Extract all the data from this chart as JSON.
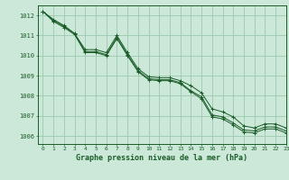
{
  "title": "Graphe pression niveau de la mer (hPa)",
  "background_color": "#cce8d8",
  "grid_color": "#9dc8b0",
  "line_color": "#1a5c28",
  "xlim": [
    -0.5,
    23
  ],
  "ylim": [
    1005.6,
    1012.5
  ],
  "yticks": [
    1006,
    1007,
    1008,
    1009,
    1010,
    1011,
    1012
  ],
  "xticks": [
    0,
    1,
    2,
    3,
    4,
    5,
    6,
    7,
    8,
    9,
    10,
    11,
    12,
    13,
    14,
    15,
    16,
    17,
    18,
    19,
    20,
    21,
    22,
    23
  ],
  "series1": [
    1012.2,
    1011.8,
    1011.5,
    1011.1,
    1010.2,
    1010.2,
    1010.05,
    1010.9,
    1010.05,
    1009.25,
    1008.85,
    1008.8,
    1008.8,
    1008.65,
    1008.25,
    1007.95,
    1007.05,
    1006.95,
    1006.65,
    1006.3,
    1006.25,
    1006.45,
    1006.45,
    1006.25
  ],
  "series2": [
    1012.2,
    1011.75,
    1011.45,
    1011.1,
    1010.3,
    1010.3,
    1010.15,
    1011.0,
    1010.15,
    1009.35,
    1008.95,
    1008.9,
    1008.9,
    1008.75,
    1008.5,
    1008.15,
    1007.35,
    1007.2,
    1006.95,
    1006.5,
    1006.4,
    1006.6,
    1006.6,
    1006.4
  ],
  "series3": [
    1012.2,
    1011.7,
    1011.4,
    1011.05,
    1010.15,
    1010.15,
    1010.0,
    1010.85,
    1010.0,
    1009.2,
    1008.8,
    1008.75,
    1008.75,
    1008.6,
    1008.2,
    1007.85,
    1006.95,
    1006.85,
    1006.55,
    1006.2,
    1006.15,
    1006.35,
    1006.35,
    1006.15
  ],
  "xlabel_fontsize": 6.0,
  "ytick_fontsize": 5.0,
  "xtick_fontsize": 4.5
}
